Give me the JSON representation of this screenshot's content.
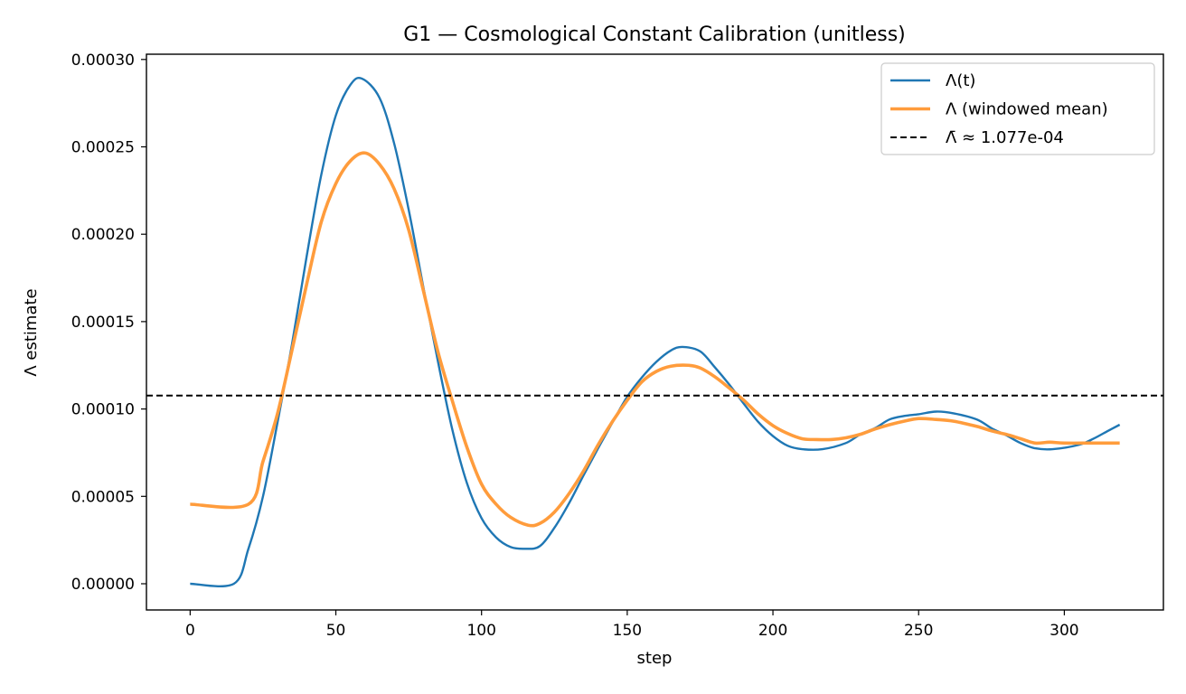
{
  "chart_data": {
    "type": "line",
    "title": "G1 — Cosmological Constant Calibration (unitless)",
    "xlabel": "step",
    "ylabel": "Λ estimate",
    "xlim": [
      -15,
      334
    ],
    "ylim": [
      -1.5e-05,
      0.000303
    ],
    "xticks": [
      0,
      50,
      100,
      150,
      200,
      250,
      300
    ],
    "yticks": [
      0,
      5e-05,
      0.0001,
      0.00015,
      0.0002,
      0.00025,
      0.0003
    ],
    "xtick_labels": [
      "0",
      "50",
      "100",
      "150",
      "200",
      "250",
      "300"
    ],
    "ytick_labels": [
      "0.00000",
      "0.00005",
      "0.00010",
      "0.00015",
      "0.00020",
      "0.00025",
      "0.00030"
    ],
    "grid": false,
    "legend_position": "top-right",
    "series": [
      {
        "name": "Λ(t)",
        "color": "#1f77b4",
        "x": [
          0,
          15,
          20,
          25,
          30,
          35,
          40,
          45,
          50,
          55,
          59,
          65,
          70,
          75,
          80,
          85,
          90,
          95,
          100,
          105,
          110,
          115,
          120,
          125,
          130,
          135,
          140,
          145,
          150,
          155,
          160,
          165,
          169,
          175,
          180,
          185,
          190,
          195,
          200,
          205,
          210,
          217,
          225,
          230,
          235,
          240,
          245,
          250,
          256,
          262,
          270,
          275,
          280,
          285,
          290,
          296,
          305,
          310,
          315,
          319
        ],
        "y": [
          0,
          0,
          2e-05,
          5e-05,
          9.25e-05,
          0.0001375,
          0.0001875,
          0.000234,
          0.000268,
          0.0002855,
          0.000289,
          0.000278,
          0.000252,
          0.000214,
          0.00017,
          0.0001275,
          8.8e-05,
          5.75e-05,
          3.75e-05,
          2.65e-05,
          2.1e-05,
          2e-05,
          2.15e-05,
          3.2e-05,
          4.6e-05,
          6.2e-05,
          7.75e-05,
          9.25e-05,
          0.000107,
          0.000118,
          0.000127,
          0.0001335,
          0.0001355,
          0.000133,
          0.000124,
          0.000114,
          0.000103,
          9.25e-05,
          8.45e-05,
          7.9e-05,
          7.7e-05,
          7.7e-05,
          8.05e-05,
          8.55e-05,
          8.9e-05,
          9.4e-05,
          9.6e-05,
          9.7e-05,
          9.85e-05,
          9.75e-05,
          9.4e-05,
          8.9e-05,
          8.5e-05,
          8.05e-05,
          7.75e-05,
          7.7e-05,
          7.95e-05,
          8.3e-05,
          8.75e-05,
          9.1e-05
        ]
      },
      {
        "name": "Λ (windowed mean)",
        "color": "#ff9c3c",
        "x": [
          0,
          20,
          25,
          30,
          35,
          40,
          45,
          50,
          55,
          60,
          65,
          70,
          75,
          80,
          85,
          90,
          95,
          100,
          105,
          110,
          116,
          120,
          125,
          130,
          135,
          140,
          145,
          150,
          155,
          160,
          165,
          171,
          175,
          180,
          185,
          190,
          195,
          200,
          205,
          210,
          215,
          220,
          225,
          230,
          235,
          240,
          245,
          250,
          256,
          262,
          270,
          275,
          280,
          285,
          290,
          295,
          300,
          310,
          319
        ],
        "y": [
          4.55e-05,
          4.55e-05,
          7e-05,
          9.75e-05,
          0.000134,
          0.0001715,
          0.000207,
          0.000229,
          0.000242,
          0.0002465,
          0.00024,
          0.000226,
          0.0002025,
          0.000168,
          0.000133,
          0.0001045,
          7.8e-05,
          5.7e-05,
          4.55e-05,
          3.8e-05,
          3.35e-05,
          3.45e-05,
          4.1e-05,
          5.15e-05,
          6.45e-05,
          7.95e-05,
          9.3e-05,
          0.000105,
          0.0001155,
          0.0001215,
          0.0001245,
          0.000125,
          0.0001235,
          0.0001185,
          0.000112,
          0.000105,
          9.7e-05,
          9.05e-05,
          8.6e-05,
          8.3e-05,
          8.25e-05,
          8.25e-05,
          8.35e-05,
          8.55e-05,
          8.85e-05,
          9.1e-05,
          9.3e-05,
          9.45e-05,
          9.4e-05,
          9.3e-05,
          9e-05,
          8.75e-05,
          8.55e-05,
          8.3e-05,
          8.05e-05,
          8.1e-05,
          8.05e-05,
          8.05e-05,
          8.05e-05
        ]
      },
      {
        "name": "Λ̄ ≈ 1.077e-04",
        "color": "#000000",
        "style": "dashed",
        "constant": 0.0001077
      }
    ]
  }
}
